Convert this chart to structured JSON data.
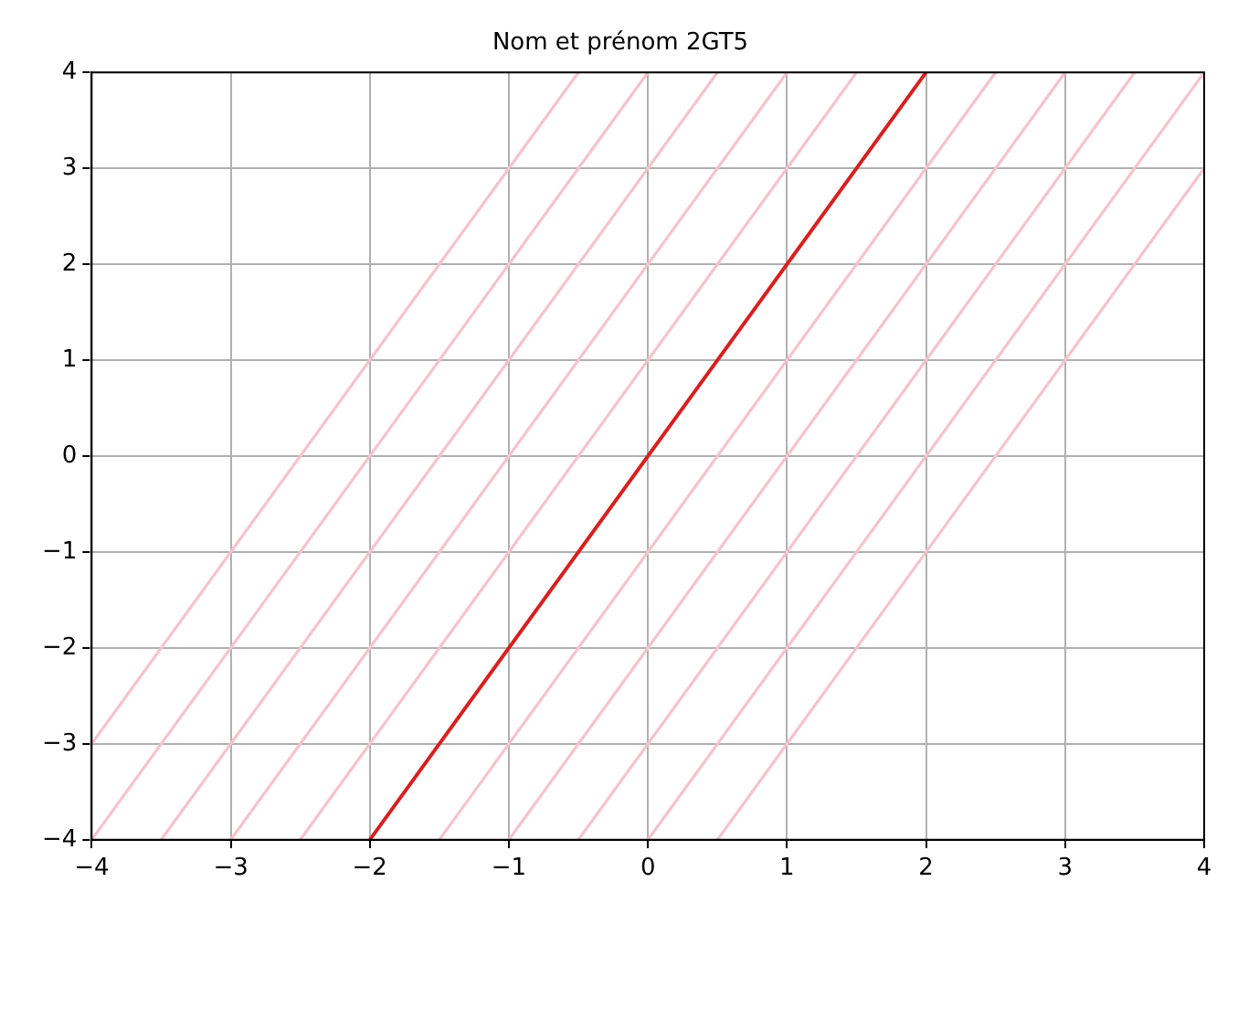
{
  "chart_data": {
    "type": "line",
    "title": "Nom et prénom 2GT5",
    "xlim": [
      -4,
      4
    ],
    "ylim": [
      -4,
      4
    ],
    "xticks": [
      -4,
      -3,
      -2,
      -1,
      0,
      1,
      2,
      3,
      4
    ],
    "yticks": [
      -4,
      -3,
      -2,
      -1,
      0,
      1,
      2,
      3,
      4
    ],
    "grid": true,
    "legend": false,
    "marker": "none",
    "line_style": "solid",
    "series": [
      {
        "color": "#f5c3cc",
        "x": [
          -4,
          -0.5
        ],
        "values": [
          -3,
          4
        ]
      },
      {
        "color": "#f5c3cc",
        "x": [
          -4,
          0
        ],
        "values": [
          -4,
          4
        ]
      },
      {
        "color": "#f5c3cc",
        "x": [
          -3.5,
          0.5
        ],
        "values": [
          -4,
          4
        ]
      },
      {
        "color": "#f5c3cc",
        "x": [
          -3,
          1
        ],
        "values": [
          -4,
          4
        ]
      },
      {
        "color": "#f5c3cc",
        "x": [
          -2.5,
          1.5
        ],
        "values": [
          -4,
          4
        ]
      },
      {
        "color": "#f5c3cc",
        "x": [
          -1.5,
          2.5
        ],
        "values": [
          -4,
          4
        ]
      },
      {
        "color": "#f5c3cc",
        "x": [
          -1,
          3
        ],
        "values": [
          -4,
          4
        ]
      },
      {
        "color": "#f5c3cc",
        "x": [
          -0.5,
          3.5
        ],
        "values": [
          -4,
          4
        ]
      },
      {
        "color": "#f5c3cc",
        "x": [
          0,
          4
        ],
        "values": [
          -4,
          4
        ]
      },
      {
        "color": "#f5c3cc",
        "x": [
          0.5,
          4
        ],
        "values": [
          -4,
          3
        ]
      },
      {
        "color": "#d62020",
        "x": [
          -2,
          2
        ],
        "values": [
          -4,
          4
        ]
      }
    ]
  }
}
